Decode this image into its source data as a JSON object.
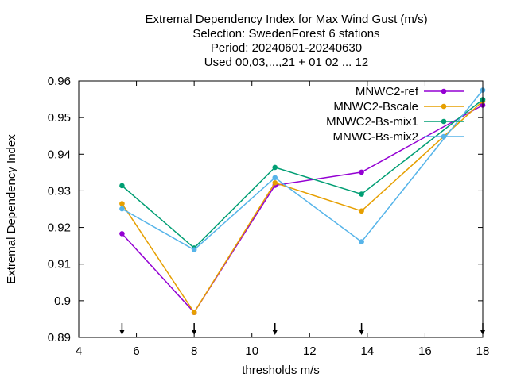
{
  "chart_data": {
    "type": "line",
    "title_lines": [
      "Extremal Dependency Index  for Max Wind Gust (m/s)",
      "Selection: SwedenForest      6 stations",
      "Period: 20240601-20240630",
      "Used 00,03,...,21 + 01 02 ... 12"
    ],
    "xlabel": "thresholds m/s",
    "ylabel": "Extremal Dependency Index",
    "xlim": [
      4,
      18
    ],
    "ylim": [
      0.89,
      0.96
    ],
    "xticks": [
      4,
      6,
      8,
      10,
      12,
      14,
      16,
      18
    ],
    "yticks": [
      0.89,
      0.9,
      0.91,
      0.92,
      0.93,
      0.94,
      0.95,
      0.96
    ],
    "ytick_labels": [
      "0.89",
      "0.9",
      "0.91",
      "0.92",
      "0.93",
      "0.94",
      "0.95",
      "0.96"
    ],
    "legend_position": "top-right",
    "grid": false,
    "threshold_markers": [
      5.5,
      8,
      10.8,
      13.8,
      18
    ],
    "series": [
      {
        "name": "MNWC2-ref",
        "color": "#9400d3",
        "x": [
          5.5,
          8,
          10.8,
          13.8,
          18
        ],
        "y": [
          0.9183,
          0.8968,
          0.9315,
          0.9351,
          0.9534
        ]
      },
      {
        "name": "MNWC2-Bscale",
        "color": "#e69f00",
        "x": [
          5.5,
          8,
          10.8,
          13.8,
          18
        ],
        "y": [
          0.9265,
          0.8968,
          0.9322,
          0.9245,
          0.9545
        ]
      },
      {
        "name": "MNWC2-Bs-mix1",
        "color": "#009e73",
        "x": [
          5.5,
          8,
          10.8,
          13.8,
          18
        ],
        "y": [
          0.9314,
          0.9144,
          0.9364,
          0.9291,
          0.9549
        ]
      },
      {
        "name": "MNWC-Bs-mix2",
        "color": "#56b4e9",
        "x": [
          5.5,
          8,
          10.8,
          13.8,
          18
        ],
        "y": [
          0.9251,
          0.9139,
          0.9336,
          0.9161,
          0.9575
        ]
      }
    ]
  }
}
